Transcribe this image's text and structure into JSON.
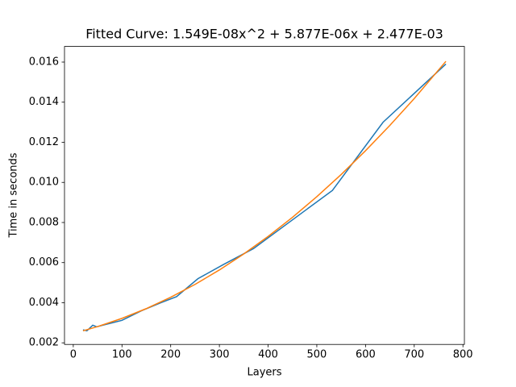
{
  "chart_data": {
    "type": "line",
    "title": "Fitted Curve: 1.549E-08x^2 + 5.877E-06x + 2.477E-03",
    "xlabel": "Layers",
    "ylabel": "Time in seconds",
    "series": [
      {
        "color": "#1f77b4",
        "x": [
          20,
          28,
          40,
          48,
          80,
          100,
          140,
          180,
          212,
          256,
          308,
          370,
          532,
          636,
          765
        ],
        "values": [
          0.00265,
          0.0026,
          0.00288,
          0.0028,
          0.003,
          0.00312,
          0.0036,
          0.004,
          0.0043,
          0.0052,
          0.0059,
          0.0067,
          0.0096,
          0.013,
          0.0159
        ]
      },
      {
        "color": "#ff7f0e",
        "x": [
          20,
          50,
          100,
          150,
          200,
          250,
          300,
          350,
          400,
          450,
          500,
          550,
          600,
          650,
          700,
          765
        ],
        "values": [
          0.0026,
          0.00281,
          0.00322,
          0.003707,
          0.004272,
          0.004914,
          0.005634,
          0.006431,
          0.007306,
          0.008258,
          0.009288,
          0.010395,
          0.01158,
          0.012842,
          0.014181,
          0.016038
        ]
      }
    ],
    "xlim": [
      -18,
      803
    ],
    "xticks": [
      0,
      100,
      200,
      300,
      400,
      500,
      600,
      700,
      800
    ],
    "ylim": [
      0.00192,
      0.01678
    ],
    "yticks": [
      0.002,
      0.004,
      0.006,
      0.008,
      {
        "value": 0.01,
        "label": "0.010"
      },
      0.012,
      0.014,
      0.016
    ]
  }
}
